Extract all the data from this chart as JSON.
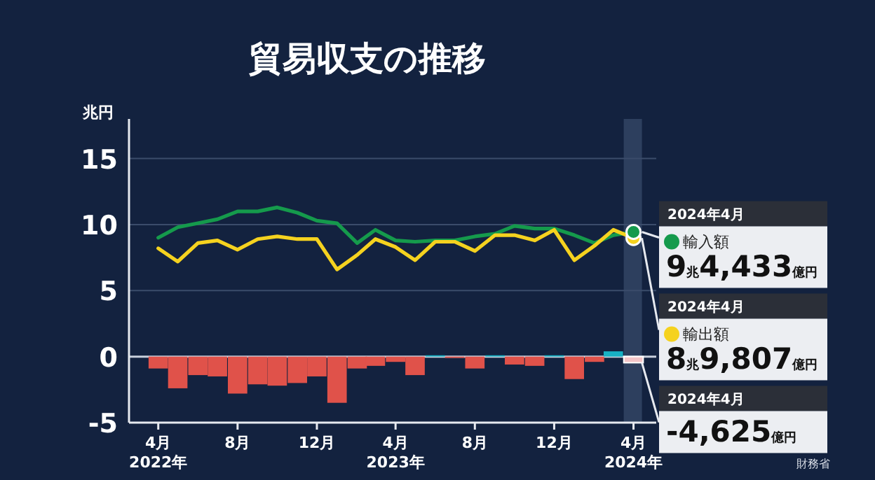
{
  "chart_data": {
    "type": "line",
    "title": "貿易収支の推移",
    "ylabel": "兆円",
    "x": [
      "2022-04",
      "2022-05",
      "2022-06",
      "2022-07",
      "2022-08",
      "2022-09",
      "2022-10",
      "2022-11",
      "2022-12",
      "2023-01",
      "2023-02",
      "2023-03",
      "2023-04",
      "2023-05",
      "2023-06",
      "2023-07",
      "2023-08",
      "2023-09",
      "2023-10",
      "2023-11",
      "2023-12",
      "2024-01",
      "2024-02",
      "2024-03",
      "2024-04"
    ],
    "series": [
      {
        "name": "輸入額",
        "color": "#159a4c",
        "values": [
          9.0,
          9.8,
          10.1,
          10.4,
          11.0,
          11.0,
          11.3,
          10.9,
          10.3,
          10.1,
          8.6,
          9.6,
          8.8,
          8.7,
          8.8,
          8.8,
          9.1,
          9.3,
          9.9,
          9.7,
          9.7,
          9.2,
          8.6,
          9.2,
          9.4433
        ],
        "marker": "none"
      },
      {
        "name": "輸出額",
        "color": "#f5d21f",
        "values": [
          8.2,
          7.2,
          8.6,
          8.8,
          8.1,
          8.9,
          9.1,
          8.9,
          8.9,
          6.6,
          7.7,
          8.9,
          8.3,
          7.3,
          8.7,
          8.7,
          8.0,
          9.2,
          9.2,
          8.8,
          9.6,
          7.3,
          8.4,
          9.6,
          8.9807
        ],
        "marker": "none"
      },
      {
        "type": "bar",
        "values": [
          -0.9,
          -2.4,
          -1.4,
          -1.5,
          -2.8,
          -2.1,
          -2.2,
          -2.0,
          -1.5,
          -3.5,
          -0.9,
          -0.7,
          -0.4,
          -1.4,
          0.1,
          -0.1,
          -0.9,
          0.1,
          -0.6,
          -0.7,
          0.1,
          -1.7,
          -0.4,
          0.4,
          -0.4625
        ],
        "colors": [
          "#e0524a",
          "#e0524a",
          "#e0524a",
          "#e0524a",
          "#e0524a",
          "#e0524a",
          "#e0524a",
          "#e0524a",
          "#e0524a",
          "#e0524a",
          "#e0524a",
          "#e0524a",
          "#e0524a",
          "#e0524a",
          "#17b1c4",
          "#e0524a",
          "#e0524a",
          "#17b1c4",
          "#e0524a",
          "#e0524a",
          "#17b1c4",
          "#e0524a",
          "#e0524a",
          "#17b1c4",
          "#f3c5c8"
        ]
      }
    ],
    "xlim": [
      "2022-02-15",
      "2024-05-06"
    ],
    "xticks": [
      {
        "value": "2022-04",
        "label": "4月\n2022年"
      },
      {
        "value": "2022-08",
        "label": "8月"
      },
      {
        "value": "2022-12",
        "label": "12月"
      },
      {
        "value": "2023-04",
        "label": "4月\n2023年"
      },
      {
        "value": "2023-08",
        "label": "8月"
      },
      {
        "value": "2023-12",
        "label": "12月"
      },
      {
        "value": "2024-04",
        "label": "4月\n2024年"
      }
    ],
    "ylim": [
      -5,
      18
    ],
    "yticks": [
      -5,
      0,
      5,
      10,
      15
    ],
    "grid": "y",
    "legend": "right",
    "bands": [
      {
        "axis": "x",
        "from": "2024-03-17",
        "to": "2024-04-14",
        "color": "#2d3f5e"
      }
    ],
    "annotations": [
      {
        "text": "2024年4月",
        "x": "2024-04",
        "y": 9.4433
      },
      {
        "text": "9兆4,433億円",
        "x": "2024-04",
        "y": 9.4433
      },
      {
        "text": "2024年4月",
        "x": "2024-04",
        "y": 8.9807
      },
      {
        "text": "8兆9,807億円",
        "x": "2024-04",
        "y": 8.9807
      },
      {
        "text": "2024年4月",
        "x": "2024-04",
        "y": -0.4625
      },
      {
        "text": "-4,625億円",
        "x": "2024-04",
        "y": -0.4625
      },
      "財務省"
    ]
  }
}
